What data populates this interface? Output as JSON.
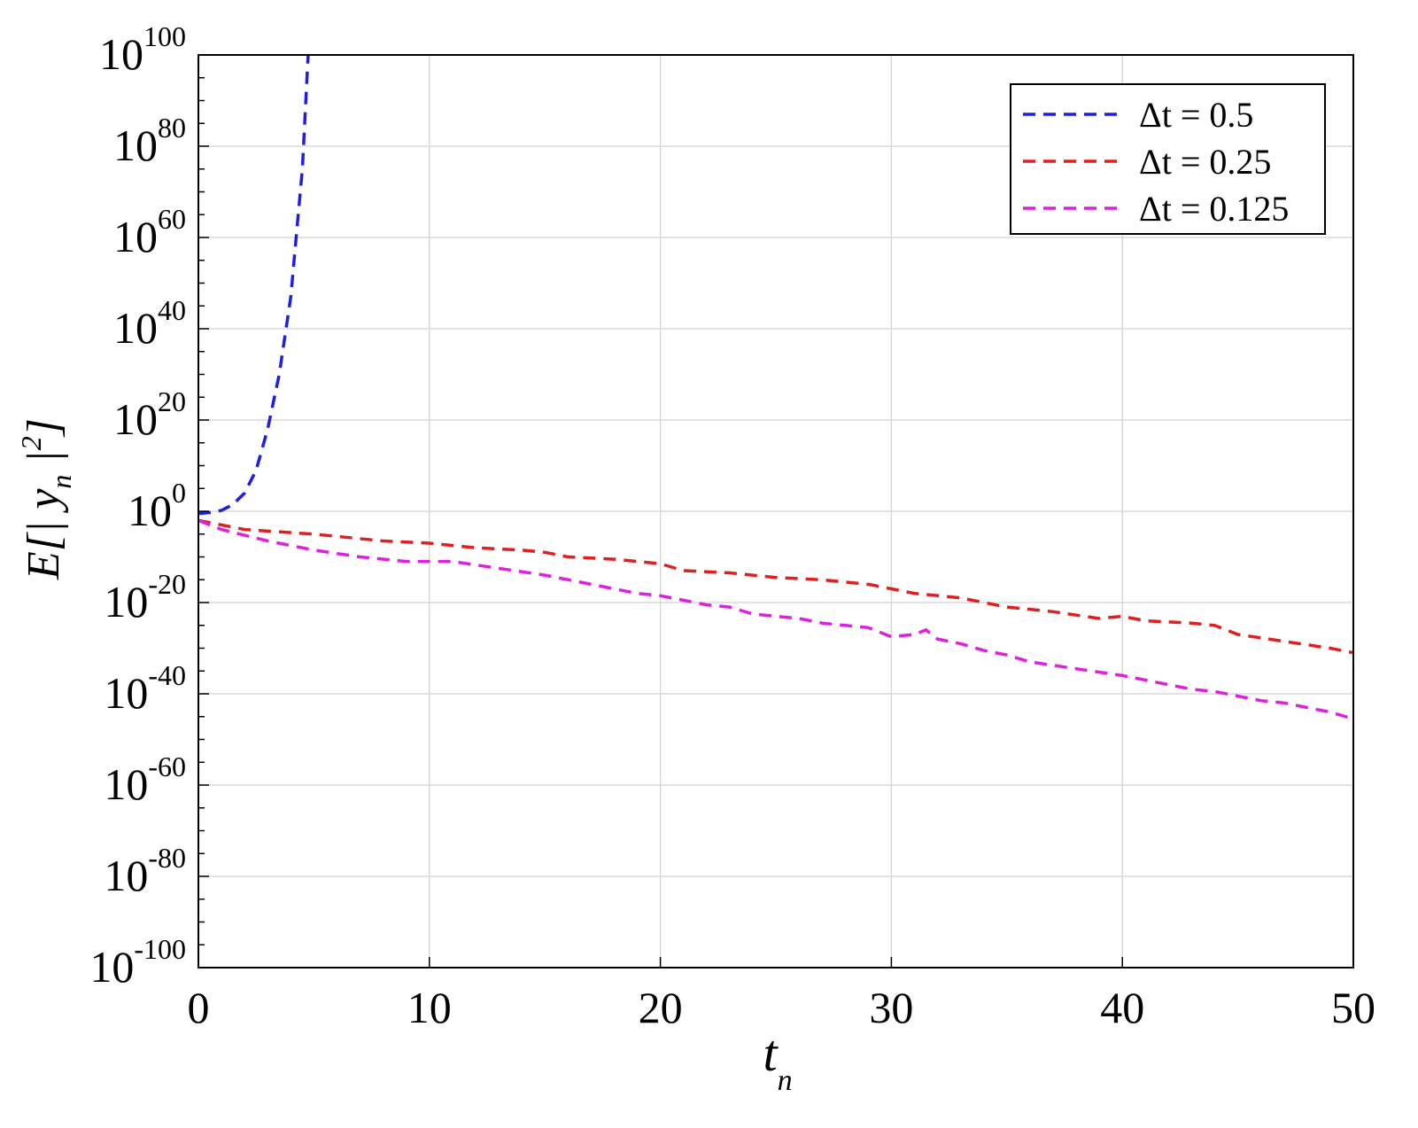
{
  "chart_data": {
    "type": "line",
    "xlabel": "t",
    "xlabel_sub": "n",
    "ylabel": {
      "prefix": "E[| y",
      "sub": "n",
      "middle": " |",
      "sup": "2",
      "suffix": "]"
    },
    "xlim": [
      0,
      50
    ],
    "ylim_exponent": [
      -100,
      100
    ],
    "yscale": "log",
    "grid": true,
    "legend_position": "top-right",
    "x_ticks": [
      "0",
      "10",
      "20",
      "30",
      "40",
      "50"
    ],
    "y_ticks": [
      {
        "base": "10",
        "exp": "100"
      },
      {
        "base": "10",
        "exp": "80"
      },
      {
        "base": "10",
        "exp": "60"
      },
      {
        "base": "10",
        "exp": "40"
      },
      {
        "base": "10",
        "exp": "20"
      },
      {
        "base": "10",
        "exp": "0"
      },
      {
        "base": "10",
        "exp": "-20"
      },
      {
        "base": "10",
        "exp": "-40"
      },
      {
        "base": "10",
        "exp": "-60"
      },
      {
        "base": "10",
        "exp": "-80"
      },
      {
        "base": "10",
        "exp": "-100"
      }
    ],
    "series": [
      {
        "name": "Δt = 0.5",
        "color": "#1f1fe0",
        "x": [
          0,
          0.5,
          1,
          1.5,
          2,
          2.5,
          3,
          3.5,
          4,
          4.5,
          4.75
        ],
        "log10_y": [
          -0.5,
          -0.3,
          0.2,
          1.5,
          4,
          9,
          18,
          30,
          47,
          75,
          100
        ]
      },
      {
        "name": "Δt = 0.25",
        "color": "#e01f1f",
        "x": [
          0,
          2,
          5,
          8,
          10,
          12,
          14,
          15,
          16,
          18,
          19,
          20,
          21,
          23,
          25,
          27,
          29,
          30,
          31,
          33,
          35,
          37,
          39,
          40,
          41,
          43,
          44,
          45,
          47,
          49,
          50
        ],
        "log10_y": [
          -2,
          -4,
          -5,
          -6.5,
          -7,
          -8,
          -8.5,
          -9,
          -10,
          -10.5,
          -11,
          -11.5,
          -13,
          -13.5,
          -14.5,
          -15,
          -16,
          -17,
          -18,
          -19,
          -21,
          -22,
          -23.5,
          -23,
          -24,
          -24.5,
          -25,
          -27,
          -28.5,
          -30,
          -31
        ]
      },
      {
        "name": "Δt = 0.125",
        "color": "#e01fe0",
        "x": [
          0,
          1,
          3,
          5,
          7,
          9,
          11,
          13,
          15,
          17,
          18,
          19,
          20,
          21,
          22,
          23,
          24,
          25,
          26,
          27,
          28,
          29,
          30,
          31,
          31.5,
          32,
          33,
          34,
          35,
          36,
          38,
          40,
          41,
          42,
          43,
          44,
          45,
          46,
          47,
          48,
          49,
          50
        ],
        "log10_y": [
          -2,
          -4,
          -6.5,
          -8.5,
          -10,
          -11,
          -11,
          -12.5,
          -14,
          -16,
          -17,
          -18,
          -18.5,
          -19.5,
          -20.5,
          -21,
          -22.5,
          -23,
          -23.5,
          -24.5,
          -25,
          -25.5,
          -27.5,
          -27,
          -26,
          -28,
          -29,
          -30.5,
          -31.5,
          -33,
          -34.5,
          -36,
          -37,
          -38,
          -39,
          -39.5,
          -40.5,
          -41.5,
          -42,
          -43,
          -44,
          -45.5
        ]
      }
    ]
  }
}
